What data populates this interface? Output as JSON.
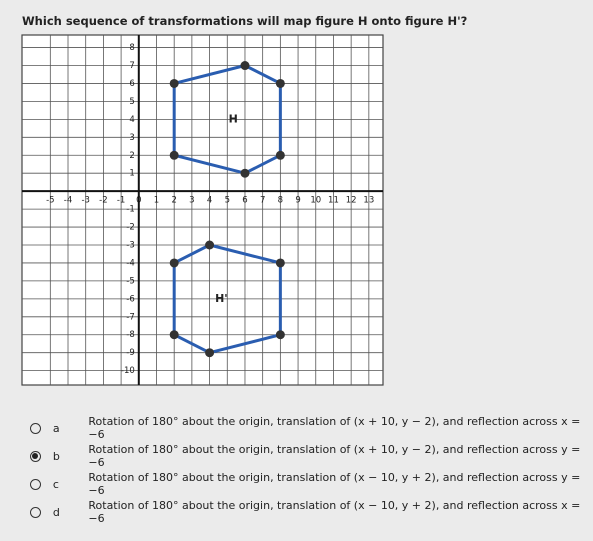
{
  "question": "Which sequence of transformations will map figure H onto figure H'?",
  "graph": {
    "xlim": [
      -6.6,
      13.8
    ],
    "ylim": [
      -10.8,
      8.7
    ],
    "xticks": [
      -5,
      -4,
      -3,
      -2,
      -1,
      0,
      1,
      2,
      3,
      4,
      5,
      6,
      7,
      8,
      9,
      10,
      11,
      12,
      13
    ],
    "yticks": [
      -10,
      -9,
      -8,
      -7,
      -6,
      -5,
      -4,
      -3,
      -2,
      -1,
      1,
      2,
      3,
      4,
      5,
      6,
      7,
      8
    ],
    "shapes": [
      {
        "label": "H",
        "color": "#2a5db0",
        "points": [
          [
            2,
            6
          ],
          [
            6,
            7
          ],
          [
            8,
            6
          ],
          [
            8,
            2
          ],
          [
            6,
            1
          ],
          [
            2,
            2
          ]
        ]
      },
      {
        "label": "H'",
        "color": "#2a5db0",
        "points": [
          [
            2,
            -4
          ],
          [
            4,
            -3
          ],
          [
            8,
            -4
          ],
          [
            8,
            -8
          ],
          [
            4,
            -9
          ],
          [
            2,
            -8
          ]
        ]
      }
    ]
  },
  "options": [
    {
      "letter": "a",
      "text": "Rotation of 180° about the origin, translation of (x + 10, y − 2), and reflection across x = −6",
      "selected": false
    },
    {
      "letter": "b",
      "text": "Rotation of 180° about the origin, translation of (x + 10, y − 2), and reflection across y = −6",
      "selected": true
    },
    {
      "letter": "c",
      "text": "Rotation of 180° about the origin, translation of (x − 10, y + 2), and reflection across y = −6",
      "selected": false
    },
    {
      "letter": "d",
      "text": "Rotation of 180° about the origin, translation of (x − 10, y + 2), and reflection across x = −6",
      "selected": false
    }
  ]
}
